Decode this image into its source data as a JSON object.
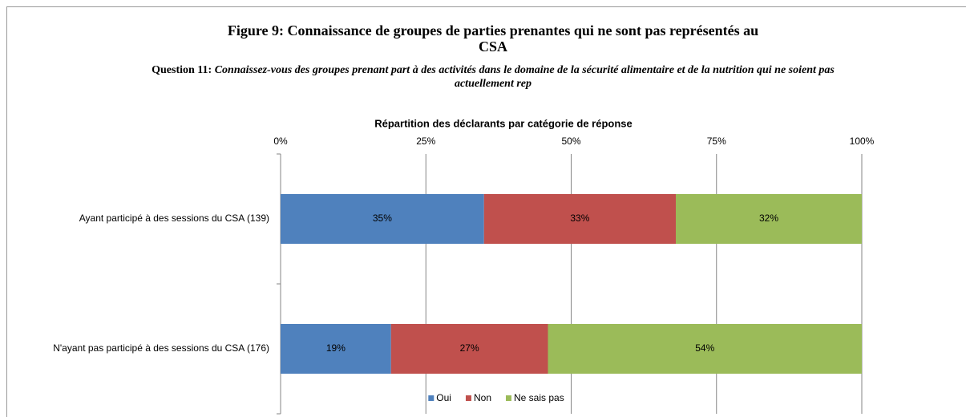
{
  "chart_data": {
    "type": "stacked-barh",
    "title": "Figure 9: Connaissance de groupes de parties prenantes qui ne sont pas représentés au CSA",
    "question_label": "Question 11:",
    "subtitle": "Connaissez-vous des groupes prenant part à des activités dans le domaine de la sécurité alimentaire et de la nutrition qui ne soient pas actuellement rep",
    "x_label": "Répartition des déclarants par catégorie de réponse",
    "categories": [
      "Ayant participé à des sessions du CSA (139)",
      "N'ayant pas participé à des sessions du CSA (176)"
    ],
    "series": [
      {
        "name": "Oui",
        "color": "#4f81bd",
        "values": [
          35,
          19
        ],
        "value_labels": [
          "35%",
          "19%"
        ]
      },
      {
        "name": "Non",
        "color": "#c0504d",
        "values": [
          33,
          27
        ],
        "value_labels": [
          "33%",
          "27%"
        ]
      },
      {
        "name": "Ne sais pas",
        "color": "#9bbb59",
        "values": [
          32,
          54
        ],
        "value_labels": [
          "32%",
          "54%"
        ]
      }
    ],
    "xlim": [
      0,
      100
    ],
    "xticks": [
      {
        "value": 0,
        "label": "0%"
      },
      {
        "value": 25,
        "label": "25%"
      },
      {
        "value": 50,
        "label": "50%"
      },
      {
        "value": 75,
        "label": "75%"
      },
      {
        "value": 100,
        "label": "100%"
      }
    ],
    "grid": true,
    "legend": "bottom"
  }
}
